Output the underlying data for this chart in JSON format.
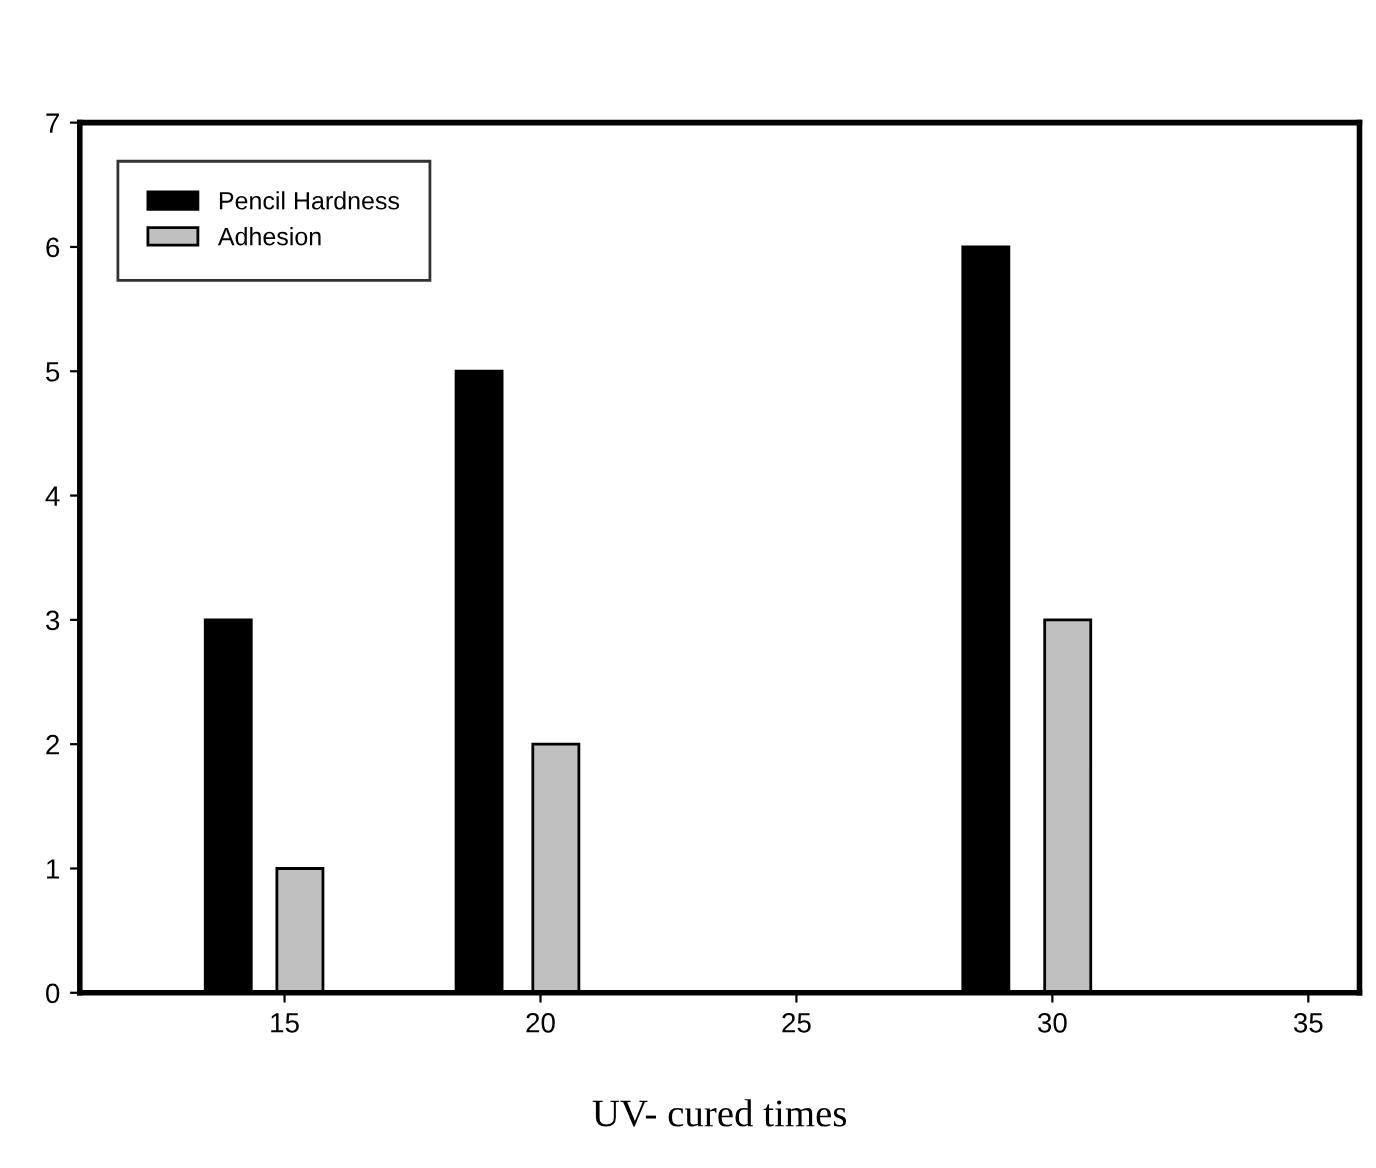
{
  "chart_data": {
    "type": "bar",
    "xlabel": "UV- cured times",
    "series": [
      {
        "name": "Pencil Hardness",
        "color": "#000000",
        "x": [
          13.9,
          18.8,
          28.7
        ],
        "values": [
          3,
          5,
          6
        ]
      },
      {
        "name": "Adhesion",
        "color": "#c0c0c0",
        "x": [
          15.3,
          20.3,
          30.3
        ],
        "values": [
          1,
          2,
          3
        ]
      }
    ],
    "xlim": [
      11,
      36
    ],
    "xticks": [
      15,
      20,
      25,
      30,
      35
    ],
    "ylim": [
      0,
      7
    ],
    "yticks": [
      0,
      1,
      2,
      3,
      4,
      5,
      6,
      7
    ],
    "grid": false,
    "legend": "top left"
  }
}
